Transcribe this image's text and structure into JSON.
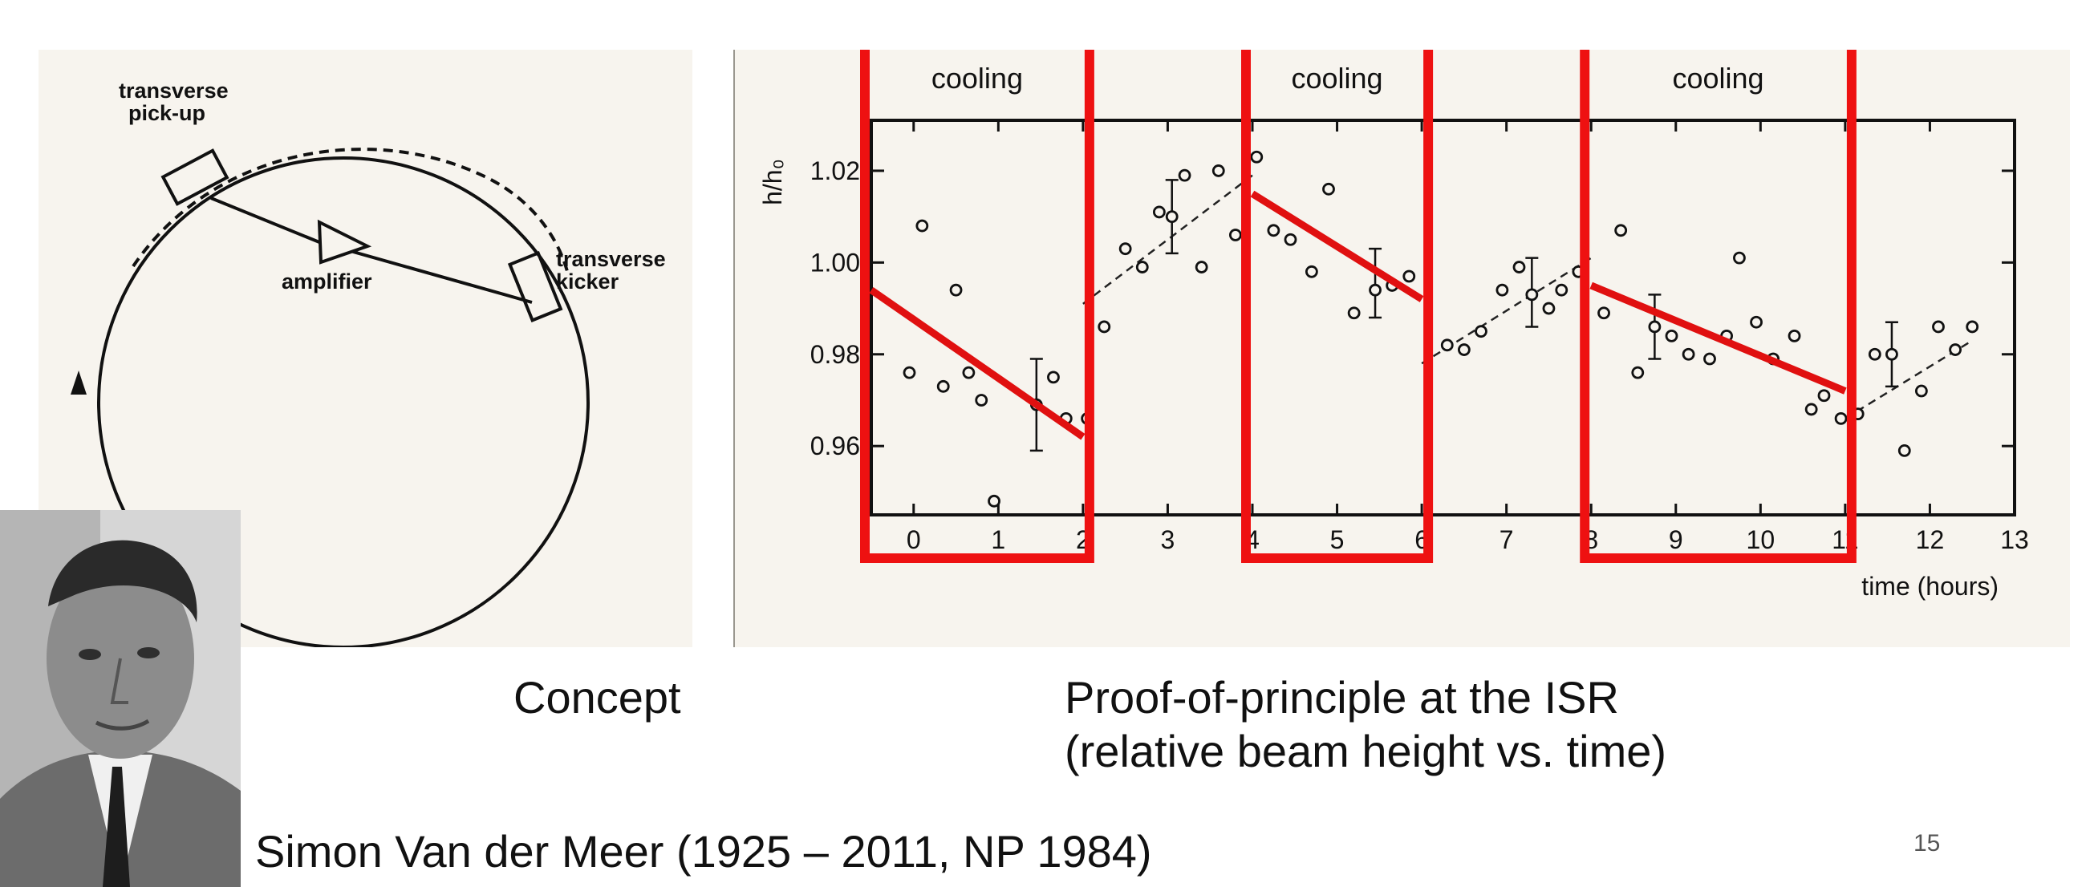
{
  "concept_diagram": {
    "pickup_label_line1": "transverse",
    "pickup_label_line2": "pick-up",
    "amplifier_label": "amplifier",
    "kicker_label_line1": "transverse",
    "kicker_label_line2": "kicker"
  },
  "captions": {
    "concept": "Concept",
    "proof_line1": "Proof-of-principle at the ISR",
    "proof_line2": "(relative beam height vs. time)",
    "person": "Simon Van der Meer (1925 – 2011, NP 1984)"
  },
  "slide_number": "15",
  "chart_data": {
    "type": "scatter",
    "ylabel": "h/h₀",
    "xlabel": "time  (hours)",
    "xlim": [
      -0.5,
      13
    ],
    "ylim": [
      0.945,
      1.031
    ],
    "x_ticks": [
      0,
      1,
      2,
      3,
      4,
      5,
      6,
      7,
      8,
      9,
      10,
      11,
      12,
      13
    ],
    "y_ticks": [
      0.96,
      0.98,
      1.0,
      1.02
    ],
    "y_tick_labels": [
      "0.96",
      "0.98",
      "1.00",
      "1.02"
    ],
    "points": [
      {
        "x": -0.05,
        "y": 0.976
      },
      {
        "x": 0.1,
        "y": 1.008
      },
      {
        "x": 0.35,
        "y": 0.973
      },
      {
        "x": 0.5,
        "y": 0.994
      },
      {
        "x": 0.65,
        "y": 0.976
      },
      {
        "x": 0.8,
        "y": 0.97
      },
      {
        "x": 0.95,
        "y": 0.948
      },
      {
        "x": 1.45,
        "y": 0.969
      },
      {
        "x": 1.65,
        "y": 0.975
      },
      {
        "x": 1.8,
        "y": 0.966
      },
      {
        "x": 2.05,
        "y": 0.966
      },
      {
        "x": 2.25,
        "y": 0.986
      },
      {
        "x": 2.5,
        "y": 1.003
      },
      {
        "x": 2.7,
        "y": 0.999
      },
      {
        "x": 2.9,
        "y": 1.011
      },
      {
        "x": 3.05,
        "y": 1.01
      },
      {
        "x": 3.2,
        "y": 1.019
      },
      {
        "x": 3.4,
        "y": 0.999
      },
      {
        "x": 3.6,
        "y": 1.02
      },
      {
        "x": 3.8,
        "y": 1.006
      },
      {
        "x": 4.05,
        "y": 1.023
      },
      {
        "x": 4.25,
        "y": 1.007
      },
      {
        "x": 4.45,
        "y": 1.005
      },
      {
        "x": 4.7,
        "y": 0.998
      },
      {
        "x": 4.9,
        "y": 1.016
      },
      {
        "x": 5.2,
        "y": 0.989
      },
      {
        "x": 5.45,
        "y": 0.994
      },
      {
        "x": 5.65,
        "y": 0.995
      },
      {
        "x": 5.85,
        "y": 0.997
      },
      {
        "x": 6.3,
        "y": 0.982
      },
      {
        "x": 6.5,
        "y": 0.981
      },
      {
        "x": 6.7,
        "y": 0.985
      },
      {
        "x": 6.95,
        "y": 0.994
      },
      {
        "x": 7.15,
        "y": 0.999
      },
      {
        "x": 7.3,
        "y": 0.993
      },
      {
        "x": 7.5,
        "y": 0.99
      },
      {
        "x": 7.65,
        "y": 0.994
      },
      {
        "x": 7.85,
        "y": 0.998
      },
      {
        "x": 8.15,
        "y": 0.989
      },
      {
        "x": 8.35,
        "y": 1.007
      },
      {
        "x": 8.55,
        "y": 0.976
      },
      {
        "x": 8.75,
        "y": 0.986
      },
      {
        "x": 8.95,
        "y": 0.984
      },
      {
        "x": 9.15,
        "y": 0.98
      },
      {
        "x": 9.4,
        "y": 0.979
      },
      {
        "x": 9.6,
        "y": 0.984
      },
      {
        "x": 9.75,
        "y": 1.001
      },
      {
        "x": 9.95,
        "y": 0.987
      },
      {
        "x": 10.15,
        "y": 0.979
      },
      {
        "x": 10.4,
        "y": 0.984
      },
      {
        "x": 10.6,
        "y": 0.968
      },
      {
        "x": 10.75,
        "y": 0.971
      },
      {
        "x": 10.95,
        "y": 0.966
      },
      {
        "x": 11.15,
        "y": 0.967
      },
      {
        "x": 11.35,
        "y": 0.98
      },
      {
        "x": 11.55,
        "y": 0.98
      },
      {
        "x": 11.7,
        "y": 0.959
      },
      {
        "x": 11.9,
        "y": 0.972
      },
      {
        "x": 12.1,
        "y": 0.986
      },
      {
        "x": 12.3,
        "y": 0.981
      },
      {
        "x": 12.5,
        "y": 0.986
      }
    ],
    "error_bars": [
      {
        "x": 1.45,
        "y": 0.969,
        "low": 0.959,
        "high": 0.979
      },
      {
        "x": 3.05,
        "y": 1.01,
        "low": 1.002,
        "high": 1.018
      },
      {
        "x": 5.45,
        "y": 0.994,
        "low": 0.988,
        "high": 1.003
      },
      {
        "x": 7.3,
        "y": 0.993,
        "low": 0.986,
        "high": 1.001
      },
      {
        "x": 8.75,
        "y": 0.986,
        "low": 0.979,
        "high": 0.993
      },
      {
        "x": 11.55,
        "y": 0.98,
        "low": 0.973,
        "high": 0.987
      }
    ],
    "dashed_trend_segments": [
      {
        "x": [
          2.0,
          4.0
        ],
        "y": [
          0.991,
          1.019
        ]
      },
      {
        "x": [
          6.0,
          8.0
        ],
        "y": [
          0.978,
          1.001
        ]
      },
      {
        "x": [
          11.0,
          12.5
        ],
        "y": [
          0.966,
          0.983
        ]
      }
    ],
    "cooling_trend_segments": [
      {
        "x": [
          -0.5,
          2.0
        ],
        "y": [
          0.994,
          0.962
        ]
      },
      {
        "x": [
          4.0,
          6.0
        ],
        "y": [
          1.015,
          0.992
        ]
      },
      {
        "x": [
          8.0,
          11.0
        ],
        "y": [
          0.995,
          0.972
        ]
      }
    ],
    "cooling_intervals": [
      {
        "label": "cooling",
        "x_start": -0.5,
        "x_end": 2.0
      },
      {
        "label": "cooling",
        "x_start": 4.0,
        "x_end": 6.0
      },
      {
        "label": "cooling",
        "x_start": 8.0,
        "x_end": 11.0
      }
    ],
    "highlight_color": "#ee1111",
    "annotation_color": "#e01010"
  }
}
